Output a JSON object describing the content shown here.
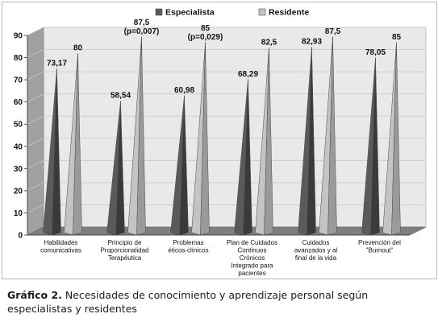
{
  "figure": {
    "caption_label": "Gráfico 2.",
    "caption_text": " Necesidades de conocimiento y aprendizaje personal según especialistas y residentes"
  },
  "chart_data": {
    "type": "bar",
    "bar_shape": "3d-cone",
    "title": "",
    "xlabel": "",
    "ylabel": "",
    "ylim": [
      0,
      90
    ],
    "yticks": [
      0,
      10,
      20,
      30,
      40,
      50,
      60,
      70,
      80,
      90
    ],
    "grid": true,
    "legend_position": "top",
    "categories": [
      "Habilidades comunicativas",
      "Principio de Proporcionalidad Terapéutica",
      "Problemas éticos-clínicos",
      "Plan de Cuidados Continuos Crónicos Integrado para pacientes",
      "Cuidados avanzados y al final de la vida",
      "Prevención del \"Burnout\""
    ],
    "category_lines": [
      [
        "Habilidades",
        "comunicativas"
      ],
      [
        "Principio de",
        "Proporcionalidad",
        "Terapéutica"
      ],
      [
        "Problemas",
        "éticos-clínicos"
      ],
      [
        "Plan de Cuidados",
        "Continuos",
        "Crónicos",
        "Integrado para",
        "pacientes"
      ],
      [
        "Cuidados",
        "avanzados  y al",
        "final de la vida"
      ],
      [
        "Prevención  del",
        "\"Burnout\""
      ]
    ],
    "series": [
      {
        "name": "Especialista",
        "color": "#5a5a5a",
        "values": [
          73.17,
          58.54,
          60.98,
          68.29,
          82.93,
          78.05
        ],
        "labels": [
          "73,17",
          "58,54",
          "60,98",
          "68,29",
          "82,93",
          "78,05"
        ]
      },
      {
        "name": "Residente",
        "color": "#c4c4c4",
        "values": [
          80,
          87.5,
          85,
          82.5,
          87.5,
          85
        ],
        "labels": [
          "80",
          "87,5",
          "85",
          "82,5",
          "87,5",
          "85"
        ]
      }
    ],
    "annotations": [
      {
        "category": 1,
        "series": 1,
        "text": "(p=0,007)"
      },
      {
        "category": 2,
        "series": 1,
        "text": "(p=0,029)"
      }
    ]
  }
}
